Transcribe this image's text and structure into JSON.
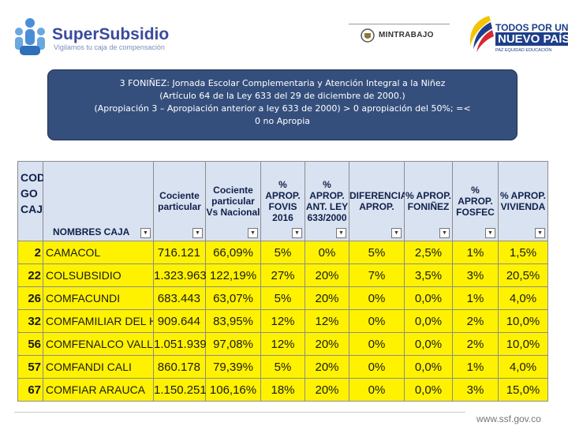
{
  "header": {
    "logo_left_name": "SuperSubsidio",
    "logo_left_tagline": "Vigilamos tu caja de compensación",
    "logo_center": "MINTRABAJO",
    "logo_right_line1": "TODOS POR UN",
    "logo_right_line2": "NUEVO PAÍS",
    "logo_right_line3": "PAZ  EQUIDAD  EDUCACIÓN"
  },
  "title_box": {
    "line1": "3 FONIÑEZ: Jornada Escolar Complementaria  y  Atención Integral a la Niñez",
    "line2": "(Artículo 64 de la Ley 633 del 29 de diciembre de 2000.)",
    "line3": "(Apropiación  3 – Apropiación anterior a ley 633 de 2000) > 0 apropiación del 50%; =<",
    "line4": "0 no Apropia"
  },
  "table": {
    "headers": {
      "codigo": "CODI GO CAJA",
      "nombre": "NOMBRES CAJA",
      "cociente": "Cociente particular",
      "cociente_nacional": "Cociente particular Vs Nacional",
      "aprop_fovis": "% APROP. FOVIS 2016",
      "aprop_ant": "% APROP. ANT. LEY 633/2000",
      "diferencia": "DIFERENCIA APROP.",
      "aprop_foninez": "% APROP. FONIÑEZ",
      "aprop_fosfec": "% APROP. FOSFEC",
      "aprop_vivienda": "% APROP. VIVIENDA"
    },
    "rows": [
      {
        "codigo": "2",
        "nombre": "CAMACOL",
        "cociente": "716.121",
        "cociente_nacional": "66,09%",
        "aprop_fovis": "5%",
        "aprop_ant": "0%",
        "diferencia": "5%",
        "aprop_foninez": "2,5%",
        "aprop_fosfec": "1%",
        "aprop_vivienda": "1,5%"
      },
      {
        "codigo": "22",
        "nombre": "COLSUBSIDIO",
        "cociente": "1.323.963",
        "cociente_nacional": "122,19%",
        "aprop_fovis": "27%",
        "aprop_ant": "20%",
        "diferencia": "7%",
        "aprop_foninez": "3,5%",
        "aprop_fosfec": "3%",
        "aprop_vivienda": "20,5%"
      },
      {
        "codigo": "26",
        "nombre": "COMFACUNDI",
        "cociente": "683.443",
        "cociente_nacional": "63,07%",
        "aprop_fovis": "5%",
        "aprop_ant": "20%",
        "diferencia": "0%",
        "aprop_foninez": "0,0%",
        "aprop_fosfec": "1%",
        "aprop_vivienda": "4,0%"
      },
      {
        "codigo": "32",
        "nombre": "COMFAMILIAR DEL HUILA",
        "cociente": "909.644",
        "cociente_nacional": "83,95%",
        "aprop_fovis": "12%",
        "aprop_ant": "12%",
        "diferencia": "0%",
        "aprop_foninez": "0,0%",
        "aprop_fosfec": "2%",
        "aprop_vivienda": "10,0%"
      },
      {
        "codigo": "56",
        "nombre": "COMFENALCO VALLE",
        "cociente": "1.051.939",
        "cociente_nacional": "97,08%",
        "aprop_fovis": "12%",
        "aprop_ant": "20%",
        "diferencia": "0%",
        "aprop_foninez": "0,0%",
        "aprop_fosfec": "2%",
        "aprop_vivienda": "10,0%"
      },
      {
        "codigo": "57",
        "nombre": "COMFANDI CALI",
        "cociente": "860.178",
        "cociente_nacional": "79,39%",
        "aprop_fovis": "5%",
        "aprop_ant": "20%",
        "diferencia": "0%",
        "aprop_foninez": "0,0%",
        "aprop_fosfec": "1%",
        "aprop_vivienda": "4,0%"
      },
      {
        "codigo": "67",
        "nombre": "COMFIAR ARAUCA",
        "cociente": "1.150.251",
        "cociente_nacional": "106,16%",
        "aprop_fovis": "18%",
        "aprop_ant": "20%",
        "diferencia": "0%",
        "aprop_foninez": "0,0%",
        "aprop_fosfec": "3%",
        "aprop_vivienda": "15,0%"
      }
    ]
  },
  "footer": {
    "url": "www.ssf.gov.co"
  }
}
